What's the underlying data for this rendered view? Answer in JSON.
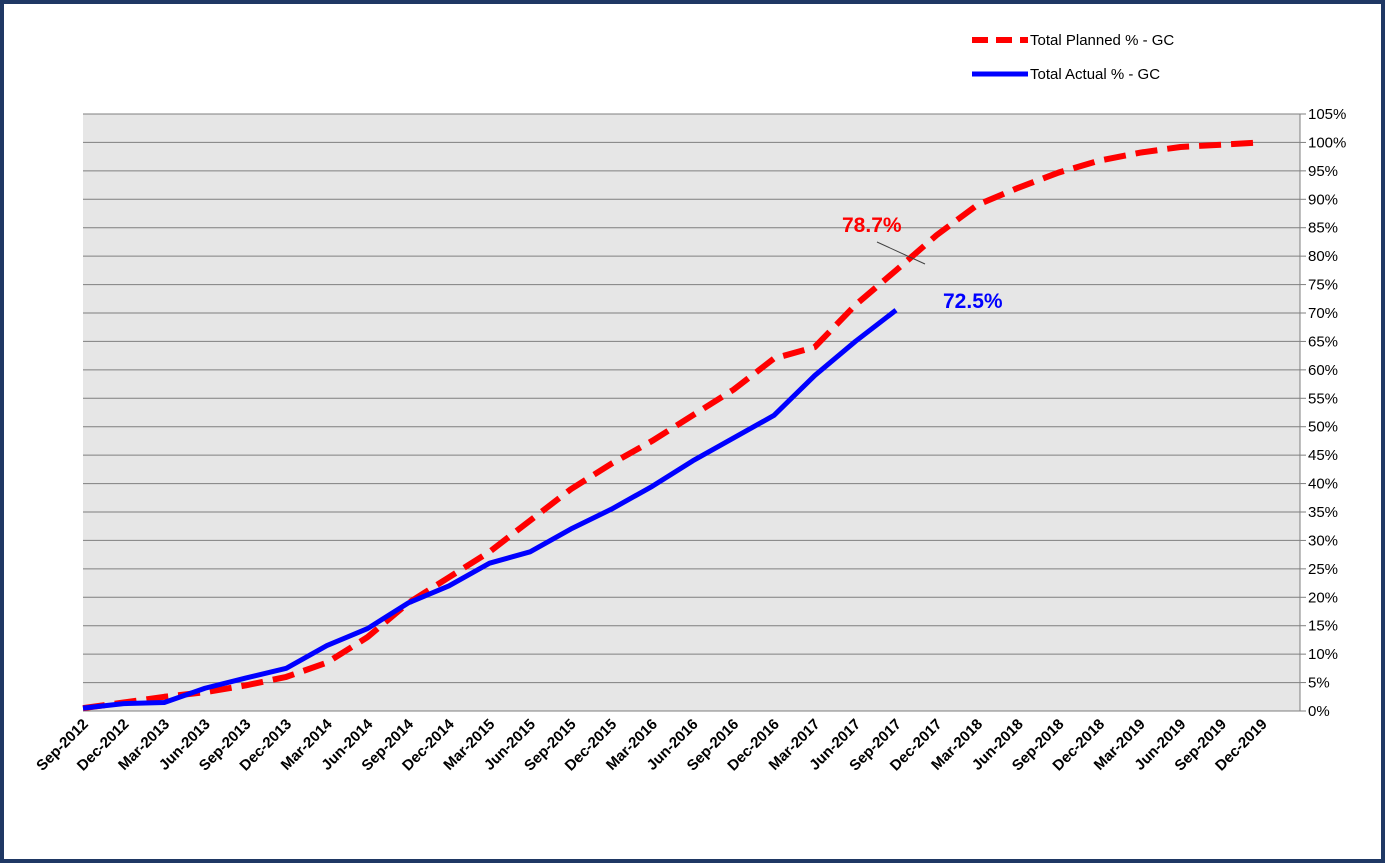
{
  "chart_data": {
    "type": "line",
    "categories": [
      "Sep-2012",
      "Dec-2012",
      "Mar-2013",
      "Jun-2013",
      "Sep-2013",
      "Dec-2013",
      "Mar-2014",
      "Jun-2014",
      "Sep-2014",
      "Dec-2014",
      "Mar-2015",
      "Jun-2015",
      "Sep-2015",
      "Dec-2015",
      "Mar-2016",
      "Jun-2016",
      "Sep-2016",
      "Dec-2016",
      "Mar-2017",
      "Jun-2017",
      "Sep-2017",
      "Dec-2017",
      "Mar-2018",
      "Jun-2018",
      "Sep-2018",
      "Dec-2018",
      "Mar-2019",
      "Jun-2019",
      "Sep-2019",
      "Dec-2019"
    ],
    "series": [
      {
        "name": "Total Planned % - GC",
        "color": "#ff0000",
        "dashed": true,
        "values": [
          0.5,
          1.5,
          2.5,
          3.3,
          4.5,
          6,
          8.5,
          13,
          19,
          23.5,
          28,
          33.5,
          39,
          43.5,
          47.5,
          52,
          56.5,
          62,
          64,
          71.4,
          77.5,
          83.7,
          89,
          92,
          94.7,
          96.8,
          98.2,
          99.2,
          99.6,
          100
        ]
      },
      {
        "name": "Total Actual % - GC",
        "color": "#0000ff",
        "dashed": false,
        "values": [
          0.5,
          1.3,
          1.5,
          4,
          5.8,
          7.5,
          11.5,
          14.5,
          19,
          22,
          26,
          28,
          32,
          35.5,
          39.5,
          44,
          48,
          52,
          59,
          65,
          70.5,
          null,
          null,
          null,
          null,
          null,
          null,
          null,
          null,
          null
        ]
      }
    ],
    "annotations": [
      "78.7%",
      "72.5%"
    ],
    "ylim": [
      0,
      105
    ],
    "yticks": [
      {
        "value": 0,
        "label": "0%"
      },
      {
        "value": 5,
        "label": "5%"
      },
      {
        "value": 10,
        "label": "10%"
      },
      {
        "value": 15,
        "label": "15%"
      },
      {
        "value": 20,
        "label": "20%"
      },
      {
        "value": 25,
        "label": "25%"
      },
      {
        "value": 30,
        "label": "30%"
      },
      {
        "value": 35,
        "label": "35%"
      },
      {
        "value": 40,
        "label": "40%"
      },
      {
        "value": 45,
        "label": "45%"
      },
      {
        "value": 50,
        "label": "50%"
      },
      {
        "value": 55,
        "label": "55%"
      },
      {
        "value": 60,
        "label": "60%"
      },
      {
        "value": 65,
        "label": "65%"
      },
      {
        "value": 70,
        "label": "70%"
      },
      {
        "value": 75,
        "label": "75%"
      },
      {
        "value": 80,
        "label": "80%"
      },
      {
        "value": 85,
        "label": "85%"
      },
      {
        "value": 90,
        "label": "90%"
      },
      {
        "value": 95,
        "label": "95%"
      },
      {
        "value": 100,
        "label": "100%"
      },
      {
        "value": 105,
        "label": "105%"
      }
    ],
    "grid": true,
    "y_axis_side": "right",
    "legend": "top-right"
  }
}
